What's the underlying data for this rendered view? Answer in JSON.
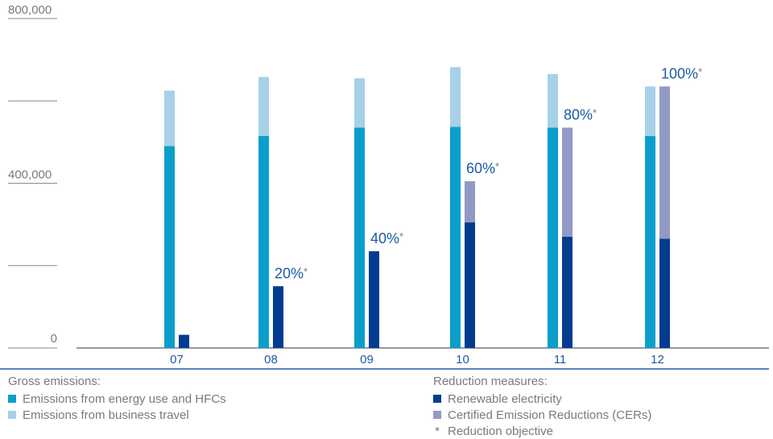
{
  "chart_data": {
    "type": "bar",
    "categories": [
      "07",
      "08",
      "09",
      "10",
      "11",
      "12"
    ],
    "y_tick_labels": [
      "800,000",
      "400,000",
      "0"
    ],
    "ylim": [
      0,
      800000
    ],
    "colors": {
      "energy": "#0a9fcb",
      "travel": "#a6d1e8",
      "renewable": "#003d8e",
      "cer": "#9199c6",
      "text": "#7a7a7a",
      "accent": "#1d5aa6"
    },
    "gross_emissions": [
      {
        "name": "Emissions from energy use and HFCs",
        "values": [
          490000,
          515000,
          535000,
          537000,
          535000,
          515000
        ]
      },
      {
        "name": "Emissions from business travel",
        "values": [
          135000,
          143000,
          120000,
          145000,
          130000,
          120000
        ]
      }
    ],
    "reduction_measures": [
      {
        "name": "Renewable electricity",
        "values": [
          32000,
          150000,
          235000,
          305000,
          270000,
          265000
        ]
      },
      {
        "name": "Certified Emission Reductions (CERs)",
        "values": [
          0,
          0,
          0,
          100000,
          265000,
          370000
        ]
      }
    ],
    "reduction_labels": [
      "",
      "20%",
      "40%",
      "60%",
      "80%",
      "100%"
    ],
    "label_marker": "*",
    "legend": {
      "gross_title": "Gross emissions:",
      "reduction_title": "Reduction measures:",
      "items_gross": [
        "Emissions from energy use and HFCs",
        "Emissions from business travel"
      ],
      "items_reduction": [
        "Renewable electricity",
        "Certified Emission Reductions (CERs)"
      ],
      "note_symbol": "*",
      "note_text": "Reduction objective"
    }
  }
}
